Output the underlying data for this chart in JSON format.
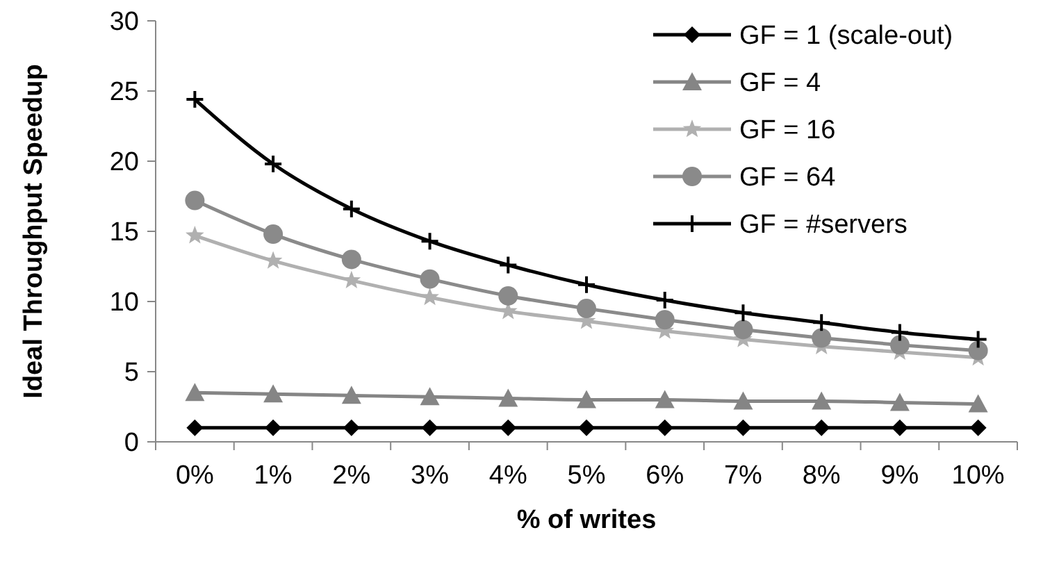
{
  "chart_data": {
    "type": "line",
    "xlabel": "% of writes",
    "ylabel": "Ideal Throughput Speedup",
    "categories": [
      "0%",
      "1%",
      "2%",
      "3%",
      "4%",
      "5%",
      "6%",
      "7%",
      "8%",
      "9%",
      "10%"
    ],
    "ylim": [
      0,
      30
    ],
    "yticks": [
      0,
      5,
      10,
      15,
      20,
      25,
      30
    ],
    "grid": false,
    "legend": "top right",
    "series": [
      {
        "name": "GF = 1 (scale-out)",
        "color": "#000000",
        "marker": "diamond",
        "values": [
          1,
          1,
          1,
          1,
          1,
          1,
          1,
          1,
          1,
          1,
          1
        ]
      },
      {
        "name": "GF = 4",
        "color": "#858585",
        "marker": "triangle",
        "values": [
          3.5,
          3.4,
          3.3,
          3.2,
          3.1,
          3.0,
          3.0,
          2.9,
          2.9,
          2.8,
          2.7
        ]
      },
      {
        "name": "GF = 16",
        "color": "#b0b0b0",
        "marker": "star",
        "values": [
          14.7,
          12.9,
          11.5,
          10.3,
          9.3,
          8.6,
          7.9,
          7.3,
          6.8,
          6.4,
          6.0
        ]
      },
      {
        "name": "GF = 64",
        "color": "#8a8a8a",
        "marker": "circle",
        "values": [
          17.2,
          14.8,
          13.0,
          11.6,
          10.4,
          9.5,
          8.7,
          8.0,
          7.4,
          6.9,
          6.5
        ]
      },
      {
        "name": "GF = #servers",
        "color": "#000000",
        "marker": "cross",
        "values": [
          24.4,
          19.8,
          16.6,
          14.3,
          12.6,
          11.2,
          10.1,
          9.2,
          8.5,
          7.8,
          7.3
        ]
      }
    ]
  }
}
